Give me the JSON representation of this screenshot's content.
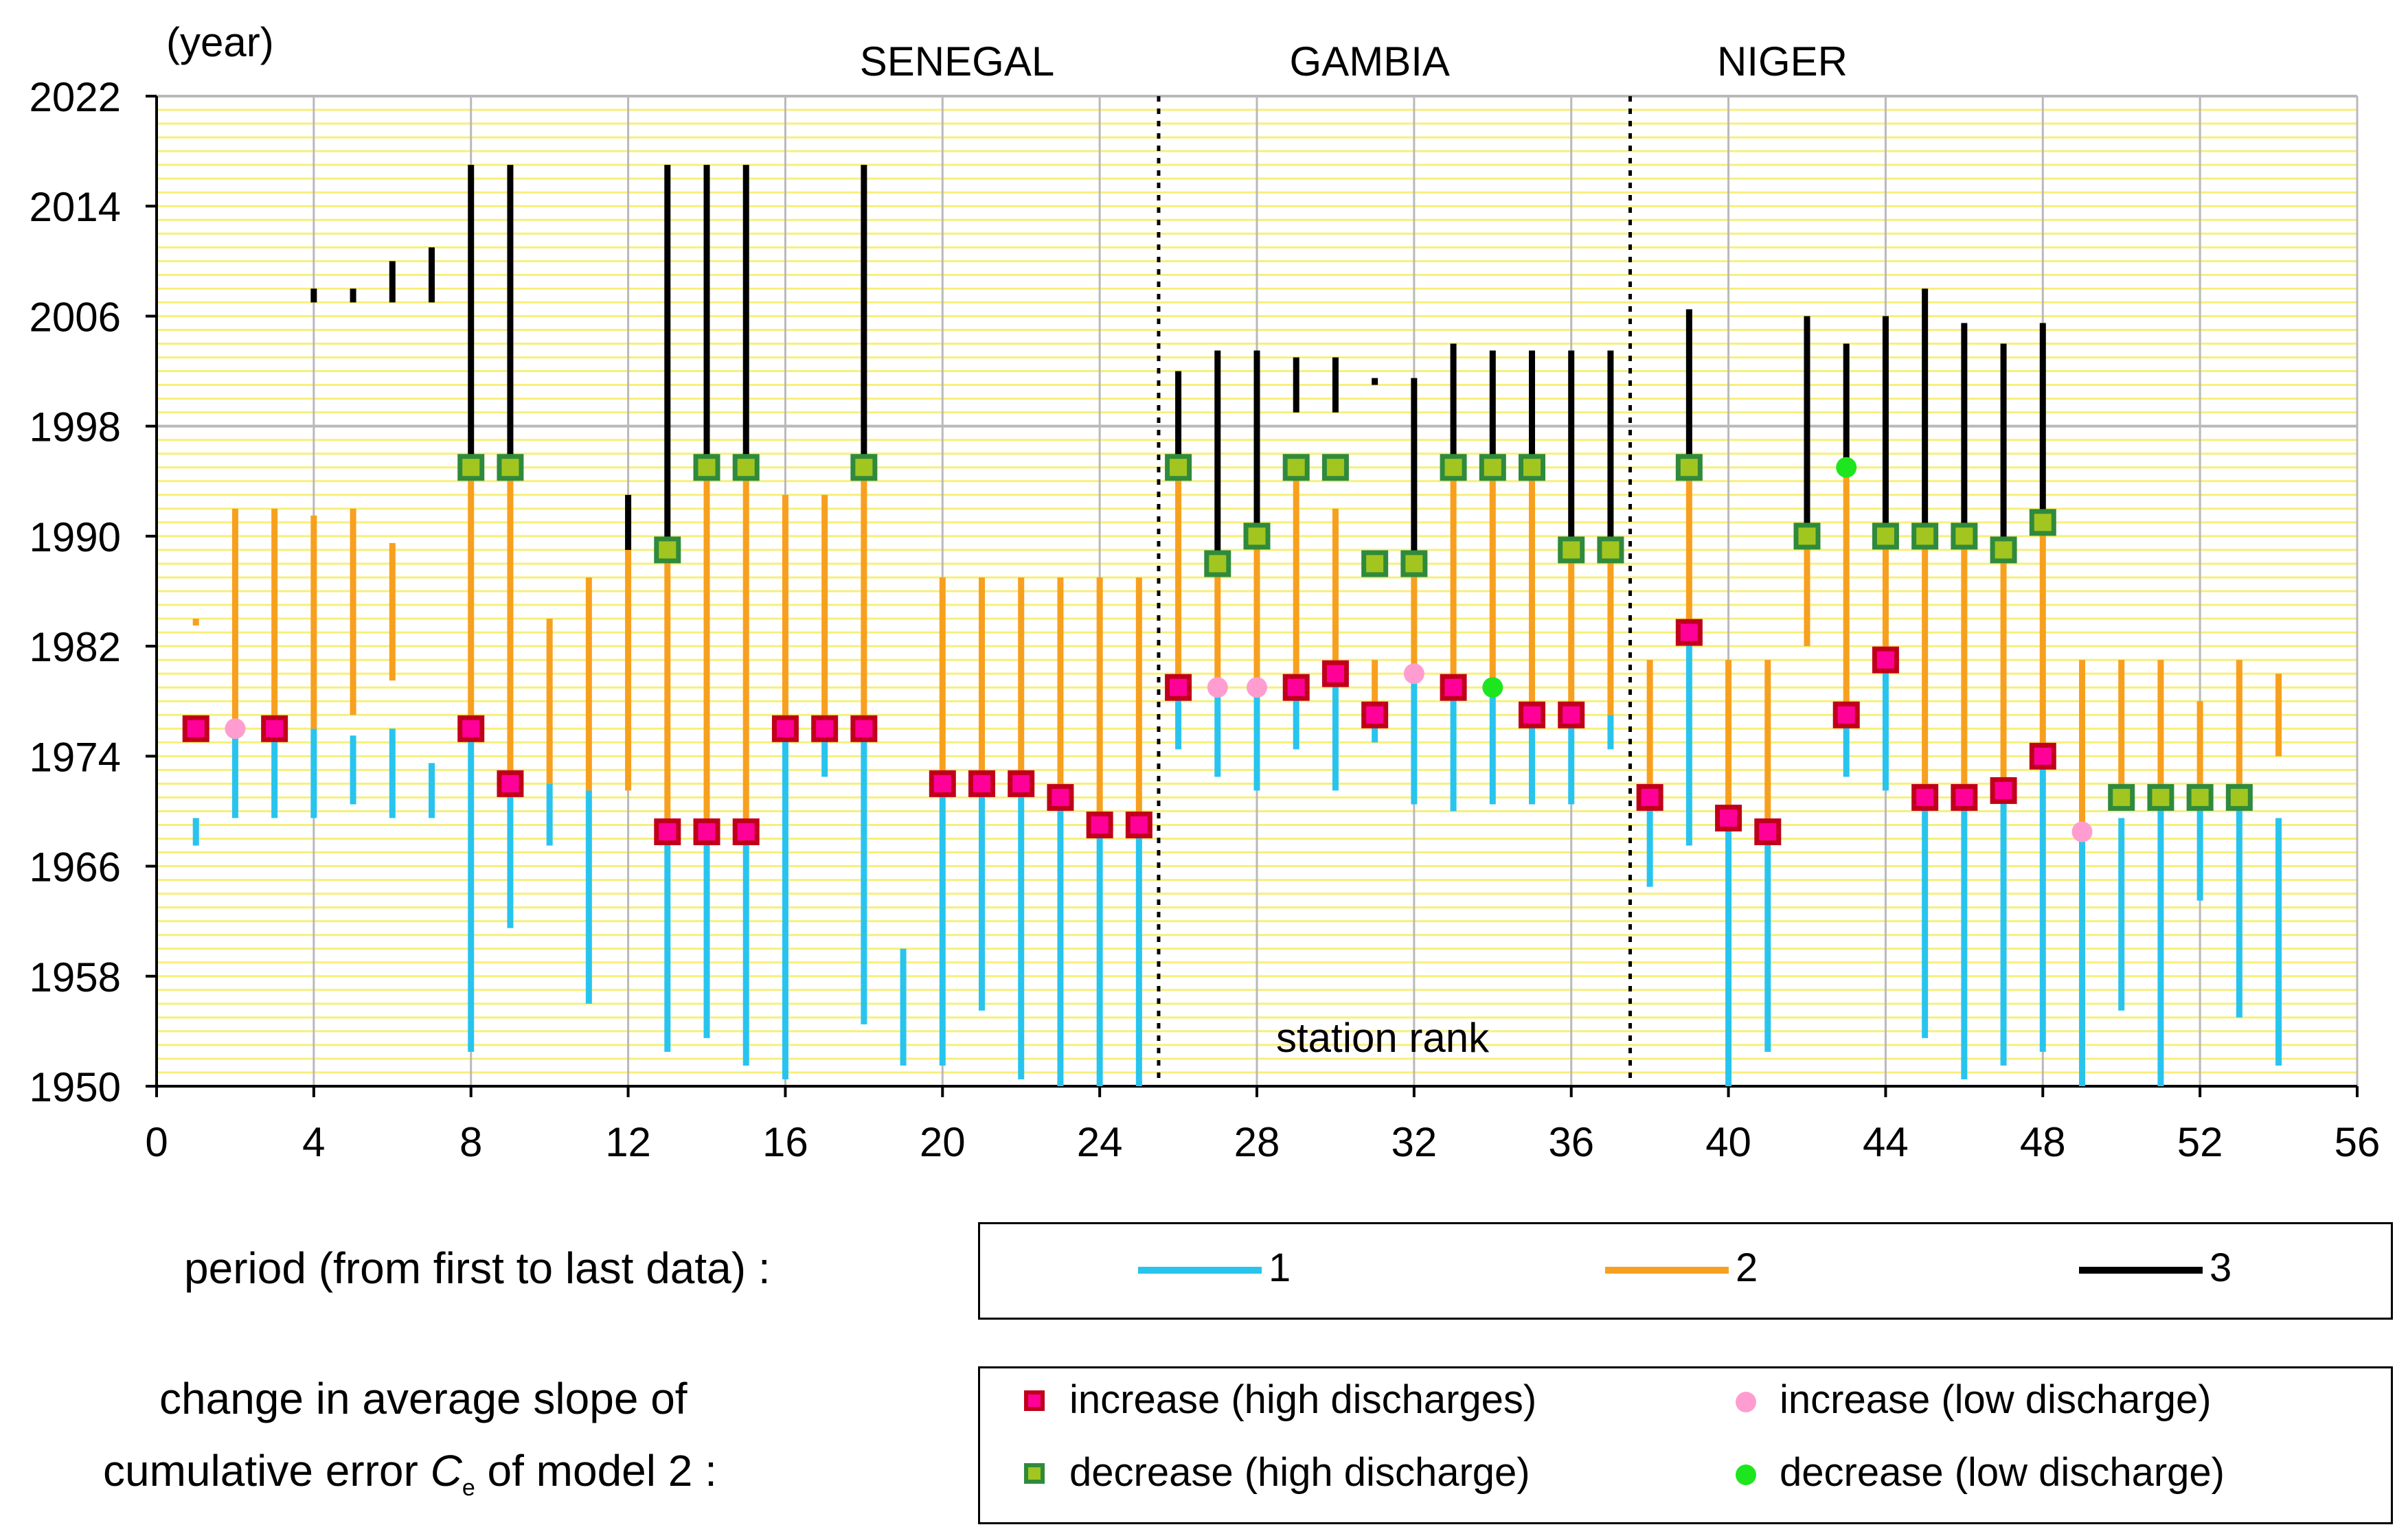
{
  "chart_data": {
    "type": "range-bar",
    "year_unit_label": "(year)",
    "xlabel": "station rank",
    "xlim": [
      0,
      56
    ],
    "ylim": [
      1950,
      2022
    ],
    "xticks": [
      "0",
      "4",
      "8",
      "12",
      "16",
      "20",
      "24",
      "28",
      "32",
      "36",
      "40",
      "44",
      "48",
      "52",
      "56"
    ],
    "yticks": [
      "1950",
      "1958",
      "1966",
      "1974",
      "1982",
      "1990",
      "1998",
      "2006",
      "2014",
      "2022"
    ],
    "basins": [
      {
        "name": "SENEGAL",
        "x_center": 21
      },
      {
        "name": "GAMBIA",
        "x_center": 31.5
      },
      {
        "name": "NIGER",
        "x_center": 42
      }
    ],
    "basin_dividers_x": [
      25.5,
      37.5
    ],
    "colors": {
      "p1": "#29c4ee",
      "p2": "#f7a01f",
      "p3": "#000000",
      "inc_high_fill": "#ff0099",
      "inc_high_edge": "#c0001a",
      "dec_high_fill": "#a2c61f",
      "dec_high_edge": "#2f8a3c",
      "inc_low": "#ff9dd0",
      "dec_low": "#1ee61e",
      "grid_minor": "#f7ef7a",
      "grid_major": "#b9b9b9"
    },
    "stations": [
      {
        "rank": 1,
        "p1": [
          1967.5,
          1969.5
        ],
        "p2": [
          1983.5,
          1984
        ],
        "marker": "inc_high",
        "y": 1976
      },
      {
        "rank": 2,
        "p1": [
          1969.5,
          1976
        ],
        "p2": [
          1976,
          1992
        ],
        "marker": "inc_low",
        "y": 1976
      },
      {
        "rank": 3,
        "p1": [
          1969.5,
          1976
        ],
        "p2": [
          1976,
          1992
        ],
        "marker": "inc_high",
        "y": 1976
      },
      {
        "rank": 4,
        "p1": [
          1969.5,
          1976
        ],
        "p2": [
          1976,
          1991.5
        ],
        "p3": [
          2007,
          2008
        ]
      },
      {
        "rank": 5,
        "p1": [
          1970.5,
          1975.5
        ],
        "p2": [
          1977,
          1992
        ],
        "p3": [
          2007,
          2008
        ]
      },
      {
        "rank": 6,
        "p1": [
          1969.5,
          1976
        ],
        "p2": [
          1979.5,
          1989.5
        ],
        "p3": [
          2007,
          2010
        ]
      },
      {
        "rank": 7,
        "p1": [
          1969.5,
          1973.5
        ],
        "p3": [
          2007,
          2011
        ]
      },
      {
        "rank": 8,
        "p1": [
          1952.5,
          1976
        ],
        "p2": [
          1976,
          1995
        ],
        "p3": [
          1995,
          2017
        ],
        "marker": "inc_high",
        "y": 1976,
        "marker2": "dec_high",
        "y2": 1995
      },
      {
        "rank": 9,
        "p1": [
          1961.5,
          1972
        ],
        "p2": [
          1972,
          1995
        ],
        "p3": [
          1995,
          2017
        ],
        "marker": "inc_high",
        "y": 1972,
        "marker2": "dec_high",
        "y2": 1995
      },
      {
        "rank": 10,
        "p1": [
          1967.5,
          1972
        ],
        "p2": [
          1972,
          1984
        ]
      },
      {
        "rank": 11,
        "p1": [
          1956,
          1971.5
        ],
        "p2": [
          1971.5,
          1987
        ]
      },
      {
        "rank": 12,
        "p2": [
          1971.5,
          1989
        ],
        "p3": [
          1989,
          1993
        ]
      },
      {
        "rank": 13,
        "p1": [
          1952.5,
          1968.5
        ],
        "p2": [
          1968.5,
          1989
        ],
        "p3": [
          1989,
          2017
        ],
        "marker": "inc_high",
        "y": 1968.5,
        "marker2": "dec_high",
        "y2": 1989
      },
      {
        "rank": 14,
        "p1": [
          1953.5,
          1968.5
        ],
        "p2": [
          1968.5,
          1995
        ],
        "p3": [
          1995,
          2017
        ],
        "marker": "inc_high",
        "y": 1968.5,
        "marker2": "dec_high",
        "y2": 1995
      },
      {
        "rank": 15,
        "p1": [
          1951.5,
          1968.5
        ],
        "p2": [
          1968.5,
          1995
        ],
        "p3": [
          1995,
          2017
        ],
        "marker": "inc_high",
        "y": 1968.5,
        "marker2": "dec_high",
        "y2": 1995
      },
      {
        "rank": 16,
        "p1": [
          1950.5,
          1976
        ],
        "p2": [
          1976,
          1993
        ],
        "marker": "inc_high",
        "y": 1976
      },
      {
        "rank": 17,
        "p1": [
          1972.5,
          1976
        ],
        "p2": [
          1976,
          1993
        ],
        "marker": "inc_high",
        "y": 1976
      },
      {
        "rank": 18,
        "p1": [
          1954.5,
          1976
        ],
        "p2": [
          1976,
          1995
        ],
        "p3": [
          1995,
          2017
        ],
        "marker": "inc_high",
        "y": 1976,
        "marker2": "dec_high",
        "y2": 1995
      },
      {
        "rank": 19,
        "p1": [
          1951.5,
          1960
        ]
      },
      {
        "rank": 20,
        "p1": [
          1951.5,
          1972
        ],
        "p2": [
          1972,
          1987
        ],
        "marker": "inc_high",
        "y": 1972
      },
      {
        "rank": 21,
        "p1": [
          1955.5,
          1972
        ],
        "p2": [
          1972,
          1987
        ],
        "marker": "inc_high",
        "y": 1972
      },
      {
        "rank": 22,
        "p1": [
          1950.5,
          1972
        ],
        "p2": [
          1972,
          1987
        ],
        "marker": "inc_high",
        "y": 1972
      },
      {
        "rank": 23,
        "p1": [
          1950,
          1971
        ],
        "p2": [
          1971,
          1987
        ],
        "marker": "inc_high",
        "y": 1971
      },
      {
        "rank": 24,
        "p1": [
          1950,
          1969
        ],
        "p2": [
          1969,
          1987
        ],
        "marker": "inc_high",
        "y": 1969
      },
      {
        "rank": 25,
        "p1": [
          1950,
          1969
        ],
        "p2": [
          1969,
          1987
        ],
        "marker": "inc_high",
        "y": 1969
      },
      {
        "rank": 26,
        "p1": [
          1974.5,
          1979
        ],
        "p2": [
          1979,
          1995
        ],
        "p3": [
          1995,
          2002
        ],
        "marker": "inc_high",
        "y": 1979,
        "marker2": "dec_high",
        "y2": 1995
      },
      {
        "rank": 27,
        "p1": [
          1972.5,
          1979
        ],
        "p2": [
          1979,
          1988
        ],
        "p3": [
          1988,
          2003.5
        ],
        "marker": "inc_low",
        "y": 1979,
        "marker2": "dec_high",
        "y2": 1988
      },
      {
        "rank": 28,
        "p1": [
          1971.5,
          1979
        ],
        "p2": [
          1979,
          1990
        ],
        "p3": [
          1990,
          2003.5
        ],
        "marker": "inc_low",
        "y": 1979,
        "marker2": "dec_high",
        "y2": 1990
      },
      {
        "rank": 29,
        "p1": [
          1974.5,
          1979
        ],
        "p2": [
          1979,
          1995
        ],
        "p3": [
          1999,
          2003
        ],
        "marker": "inc_high",
        "y": 1979,
        "marker2": "dec_high",
        "y2": 1995
      },
      {
        "rank": 30,
        "p1": [
          1971.5,
          1980
        ],
        "p2": [
          1980,
          1992
        ],
        "p3": [
          1999,
          2003
        ],
        "marker": "inc_high",
        "y": 1980,
        "marker2": "dec_high",
        "y2": 1995
      },
      {
        "rank": 31,
        "p1": [
          1975,
          1977
        ],
        "p2": [
          1977,
          1981
        ],
        "p3": [
          2001,
          2001.5
        ],
        "marker": "inc_high",
        "y": 1977,
        "marker2": "dec_high",
        "y2": 1988
      },
      {
        "rank": 32,
        "p1": [
          1970.5,
          1980
        ],
        "p2": [
          1980,
          1988
        ],
        "p3": [
          1988,
          2001.5
        ],
        "marker": "inc_low",
        "y": 1980,
        "marker2": "dec_high",
        "y2": 1988
      },
      {
        "rank": 33,
        "p1": [
          1970,
          1979
        ],
        "p2": [
          1979,
          1995
        ],
        "p3": [
          1995,
          2004
        ],
        "marker": "inc_high",
        "y": 1979,
        "marker2": "dec_high",
        "y2": 1995
      },
      {
        "rank": 34,
        "p1": [
          1970.5,
          1979
        ],
        "p2": [
          1979,
          1995
        ],
        "p3": [
          1995,
          2003.5
        ],
        "marker": "dec_low",
        "y": 1979,
        "marker2": "dec_high",
        "y2": 1995
      },
      {
        "rank": 35,
        "p1": [
          1970.5,
          1977
        ],
        "p2": [
          1977,
          1995
        ],
        "p3": [
          1995,
          2003.5
        ],
        "marker": "inc_high",
        "y": 1977,
        "marker2": "dec_high",
        "y2": 1995
      },
      {
        "rank": 36,
        "p1": [
          1970.5,
          1977
        ],
        "p2": [
          1977,
          1989
        ],
        "p3": [
          1989,
          2003.5
        ],
        "marker": "inc_high",
        "y": 1977,
        "marker2": "dec_high",
        "y2": 1989
      },
      {
        "rank": 37,
        "p1": [
          1974.5,
          1977
        ],
        "p2": [
          1977,
          1989
        ],
        "p3": [
          1989,
          2003.5
        ],
        "marker2": "dec_high",
        "y2": 1989
      },
      {
        "rank": 38,
        "p1": [
          1964.5,
          1971
        ],
        "p2": [
          1971,
          1981
        ],
        "marker": "inc_high",
        "y": 1971
      },
      {
        "rank": 39,
        "p1": [
          1967.5,
          1983
        ],
        "p2": [
          1983,
          1995
        ],
        "p3": [
          1995,
          2006.5
        ],
        "marker": "inc_high",
        "y": 1983,
        "marker2": "dec_high",
        "y2": 1995
      },
      {
        "rank": 40,
        "p1": [
          1950,
          1969.5
        ],
        "p2": [
          1969.5,
          1981
        ],
        "marker": "inc_high",
        "y": 1969.5
      },
      {
        "rank": 41,
        "p1": [
          1952.5,
          1968.5
        ],
        "p2": [
          1968.5,
          1981
        ],
        "marker": "inc_high",
        "y": 1968.5
      },
      {
        "rank": 42,
        "p2": [
          1982,
          1990
        ],
        "p3": [
          1990,
          2006
        ],
        "marker2": "dec_high",
        "y2": 1990
      },
      {
        "rank": 43,
        "p1": [
          1972.5,
          1977
        ],
        "p2": [
          1977,
          1995
        ],
        "p3": [
          1995,
          2004
        ],
        "marker": "inc_high",
        "y": 1977,
        "marker2": "dec_low",
        "y2": 1995
      },
      {
        "rank": 44,
        "p1": [
          1971.5,
          1981
        ],
        "p2": [
          1981,
          1990
        ],
        "p3": [
          1990,
          2006
        ],
        "marker": "inc_high",
        "y": 1981,
        "marker2": "dec_high",
        "y2": 1990
      },
      {
        "rank": 45,
        "p1": [
          1953.5,
          1971
        ],
        "p2": [
          1971,
          1990
        ],
        "p3": [
          1990,
          2008
        ],
        "marker": "inc_high",
        "y": 1971,
        "marker2": "dec_high",
        "y2": 1990
      },
      {
        "rank": 46,
        "p1": [
          1950.5,
          1971
        ],
        "p2": [
          1971,
          1990
        ],
        "p3": [
          1990,
          2005.5
        ],
        "marker": "inc_high",
        "y": 1971,
        "marker2": "dec_high",
        "y2": 1990
      },
      {
        "rank": 47,
        "p1": [
          1951.5,
          1971.5
        ],
        "p2": [
          1971.5,
          1989
        ],
        "p3": [
          1989,
          2004
        ],
        "marker": "inc_high",
        "y": 1971.5,
        "marker2": "dec_high",
        "y2": 1989
      },
      {
        "rank": 48,
        "p1": [
          1952.5,
          1974
        ],
        "p2": [
          1974,
          1991
        ],
        "p3": [
          1991,
          2005.5
        ],
        "marker": "inc_high",
        "y": 1974,
        "marker2": "dec_high",
        "y2": 1991
      },
      {
        "rank": 49,
        "p1": [
          1950,
          1968.5
        ],
        "p2": [
          1968.5,
          1981
        ],
        "marker": "inc_low",
        "y": 1968.5
      },
      {
        "rank": 50,
        "p1": [
          1955.5,
          1969.5
        ],
        "p2": [
          1971,
          1981
        ],
        "marker": "dec_high",
        "y": 1971
      },
      {
        "rank": 51,
        "p1": [
          1950,
          1971
        ],
        "p2": [
          1971,
          1981
        ],
        "marker": "dec_high",
        "y": 1971
      },
      {
        "rank": 52,
        "p1": [
          1963.5,
          1971
        ],
        "p2": [
          1971,
          1978
        ],
        "marker": "dec_high",
        "y": 1971
      },
      {
        "rank": 53,
        "p1": [
          1955,
          1971
        ],
        "p2": [
          1971,
          1981
        ],
        "marker": "dec_high",
        "y": 1971
      },
      {
        "rank": 54,
        "p1": [
          1951.5,
          1969.5
        ],
        "p2": [
          1974,
          1980
        ]
      }
    ]
  },
  "legend_period": {
    "title": "period (from first to last data) :",
    "items": [
      {
        "key": "p1",
        "label": "1"
      },
      {
        "key": "p2",
        "label": "2"
      },
      {
        "key": "p3",
        "label": "3"
      }
    ]
  },
  "legend_markers": {
    "title_line1": "change in average slope of",
    "title_line2_pre": "cumulative error ",
    "title_line2_var": "C",
    "title_line2_sub": "e",
    "title_line2_post": " of model 2 :",
    "items": {
      "inc_high": "increase (high discharges)",
      "inc_low": "increase (low  discharge)",
      "dec_high": "decrease (high discharge)",
      "dec_low": "decrease (low  discharge)"
    }
  }
}
